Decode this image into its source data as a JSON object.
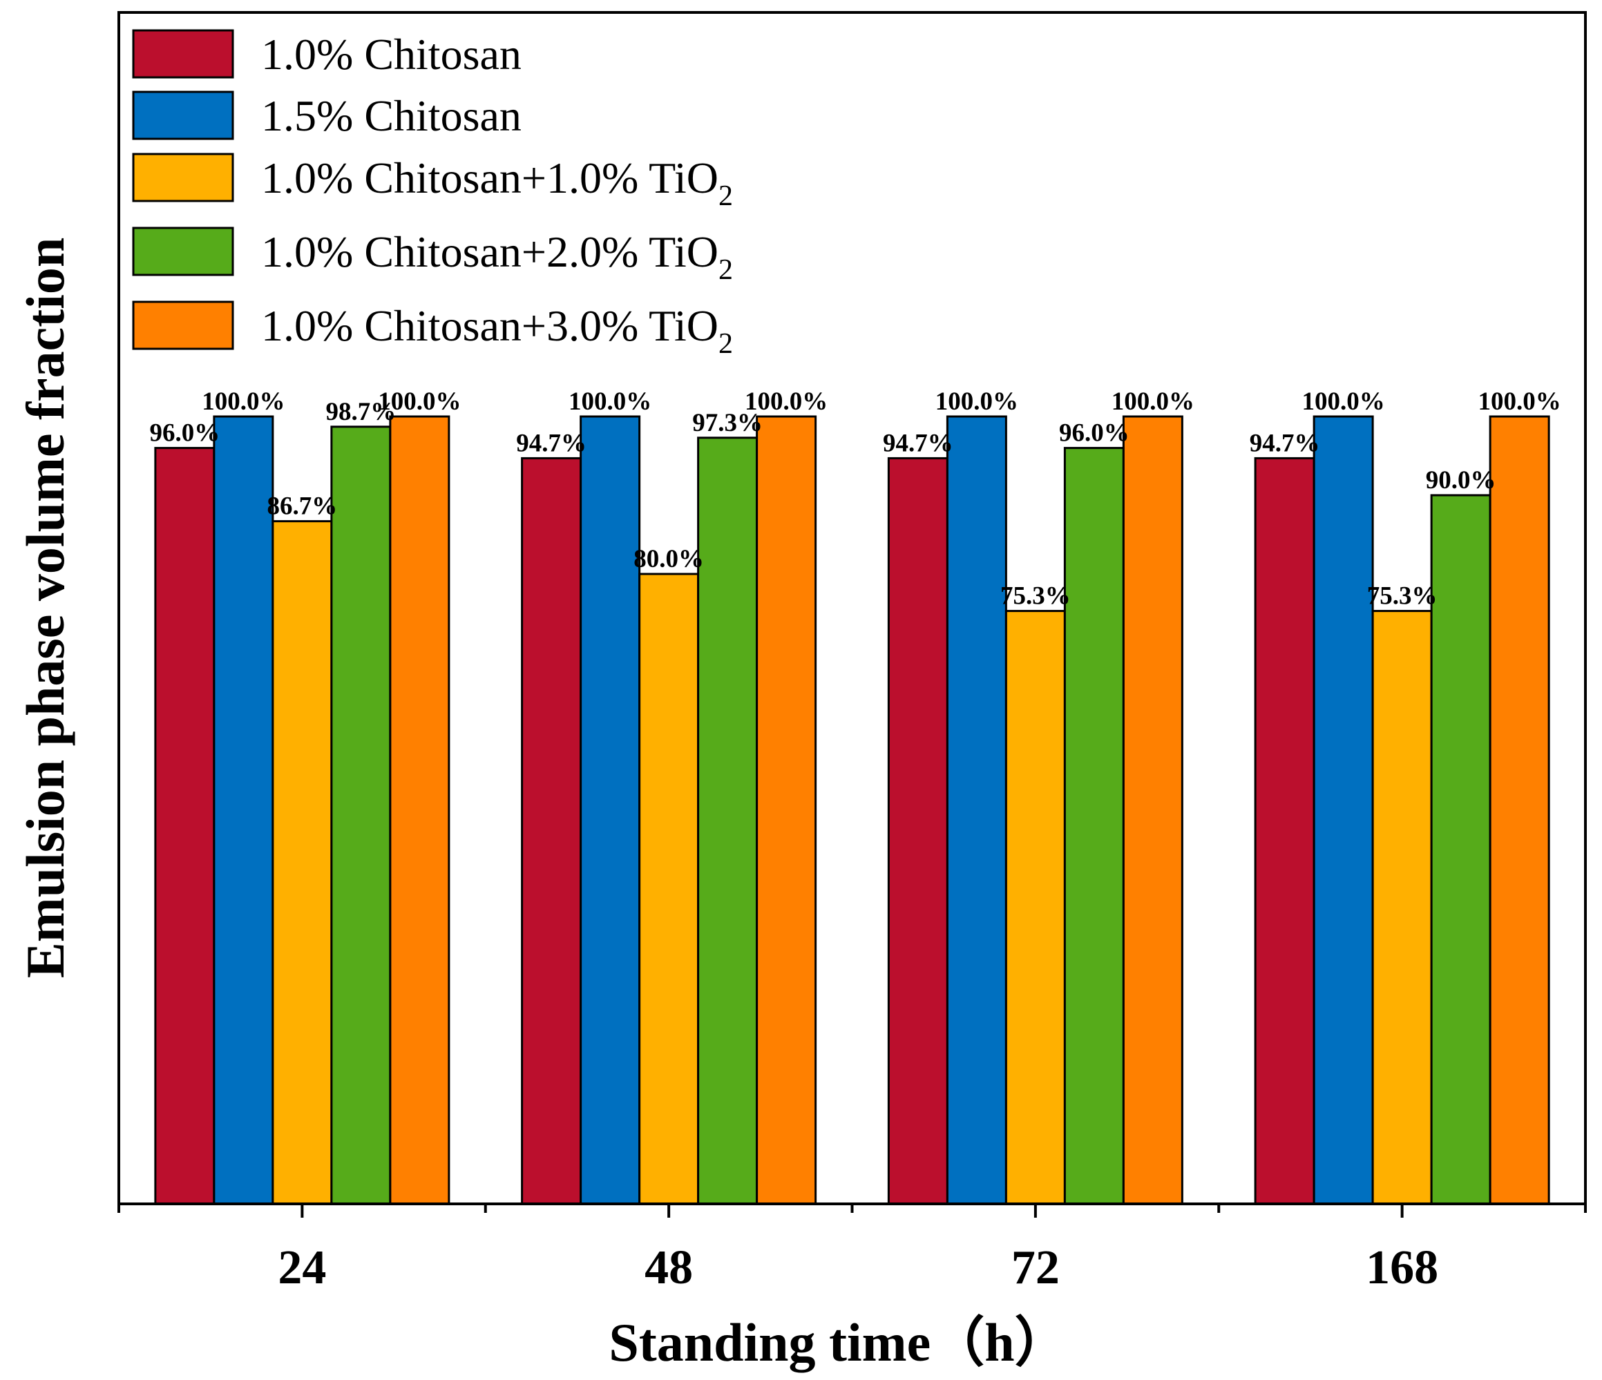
{
  "chart_data": {
    "type": "bar",
    "title": "",
    "xlabel": "Standing time（h）",
    "ylabel": "Emulsion phase volume fraction",
    "categories": [
      "24",
      "48",
      "72",
      "168"
    ],
    "ylim": [
      0,
      100
    ],
    "grid": false,
    "legend_position": "top-left",
    "series": [
      {
        "name": "1.0% Chitosan",
        "name_main": "1.0% Chitosan",
        "name_sub": "",
        "color": "#BB0F2D",
        "values": [
          96.0,
          94.7,
          94.7,
          94.7
        ],
        "labels": [
          "96.0%",
          "94.7%",
          "94.7%",
          "94.7%"
        ]
      },
      {
        "name": "1.5% Chitosan",
        "name_main": "1.5% Chitosan",
        "name_sub": "",
        "color": "#0070C0",
        "values": [
          100.0,
          100.0,
          100.0,
          100.0
        ],
        "labels": [
          "100.0%",
          "100.0%",
          "100.0%",
          "100.0%"
        ]
      },
      {
        "name": "1.0% Chitosan+1.0% TiO2",
        "name_main": "1.0% Chitosan+1.0% TiO",
        "name_sub": "2",
        "color": "#FFB000",
        "values": [
          86.7,
          80.0,
          75.3,
          75.3
        ],
        "labels": [
          "86.7%",
          "80.0%",
          "75.3%",
          "75.3%"
        ]
      },
      {
        "name": "1.0% Chitosan+2.0% TiO2",
        "name_main": "1.0% Chitosan+2.0% TiO",
        "name_sub": "2",
        "color": "#56AB1A",
        "values": [
          98.7,
          97.3,
          96.0,
          90.0
        ],
        "labels": [
          "98.7%",
          "97.3%",
          "96.0%",
          "90.0%"
        ]
      },
      {
        "name": "1.0% Chitosan+3.0% TiO2",
        "name_main": "1.0% Chitosan+3.0% TiO",
        "name_sub": "2",
        "color": "#FF8000",
        "values": [
          100.0,
          100.0,
          100.0,
          100.0
        ],
        "labels": [
          "100.0%",
          "100.0%",
          "100.0%",
          "100.0%"
        ]
      }
    ]
  }
}
